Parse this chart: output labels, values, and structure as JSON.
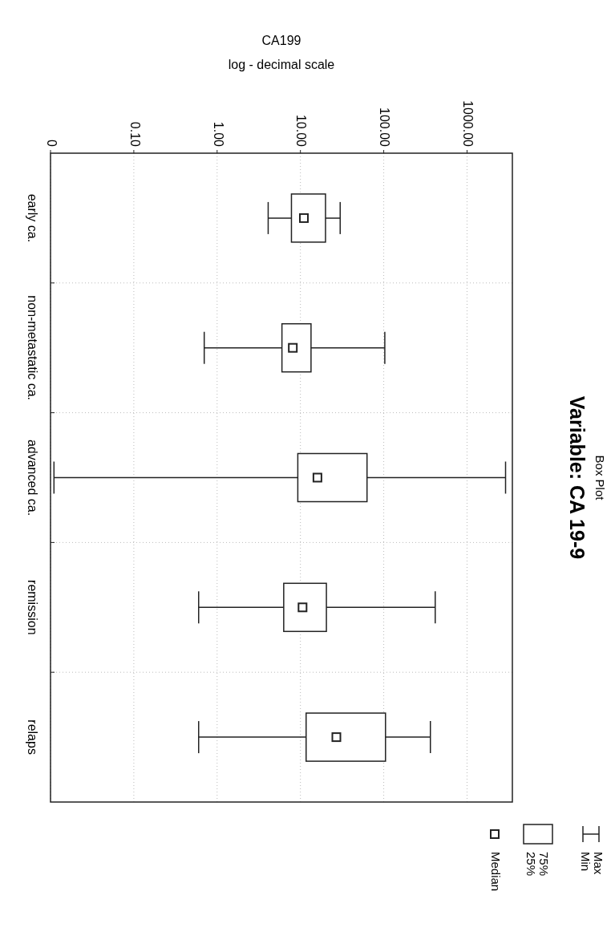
{
  "chart_data": {
    "type": "box",
    "orientation": "horizontal",
    "title": "Variable: CA 19-9",
    "subtitle": "Box Plot",
    "xlabel": "CA199\nlog - decimal scale",
    "categories": [
      "early ca.",
      "non-metastatic ca.",
      "advanced ca.",
      "remission",
      "relaps"
    ],
    "boxes": [
      {
        "low": 4.1,
        "q1": 7.8,
        "median": 11,
        "q3": 20,
        "high": 30
      },
      {
        "low": 0.7,
        "q1": 6,
        "median": 8.1,
        "q3": 13.4,
        "high": 103
      },
      {
        "low": 0.011,
        "q1": 9.3,
        "median": 16,
        "q3": 63,
        "high": 2900
      },
      {
        "low": 0.6,
        "q1": 6.3,
        "median": 10.6,
        "q3": 20.5,
        "high": 415
      },
      {
        "low": 0.6,
        "q1": 11.7,
        "median": 27,
        "q3": 105,
        "high": 363
      }
    ],
    "log": "x",
    "xlim": [
      0.01,
      3500
    ],
    "xticks": [
      {
        "value": 0.01,
        "label": "0"
      },
      {
        "value": 0.1,
        "label": "0.10"
      },
      {
        "value": 1,
        "label": "1.00"
      },
      {
        "value": 10,
        "label": "10.00"
      },
      {
        "value": 100,
        "label": "100.00"
      },
      {
        "value": 1000,
        "label": "1000.00"
      }
    ],
    "grid": true,
    "marker": "square",
    "color": "#222222",
    "annotations": [
      "Max",
      "Min",
      "75%",
      "25%",
      "Median"
    ]
  }
}
